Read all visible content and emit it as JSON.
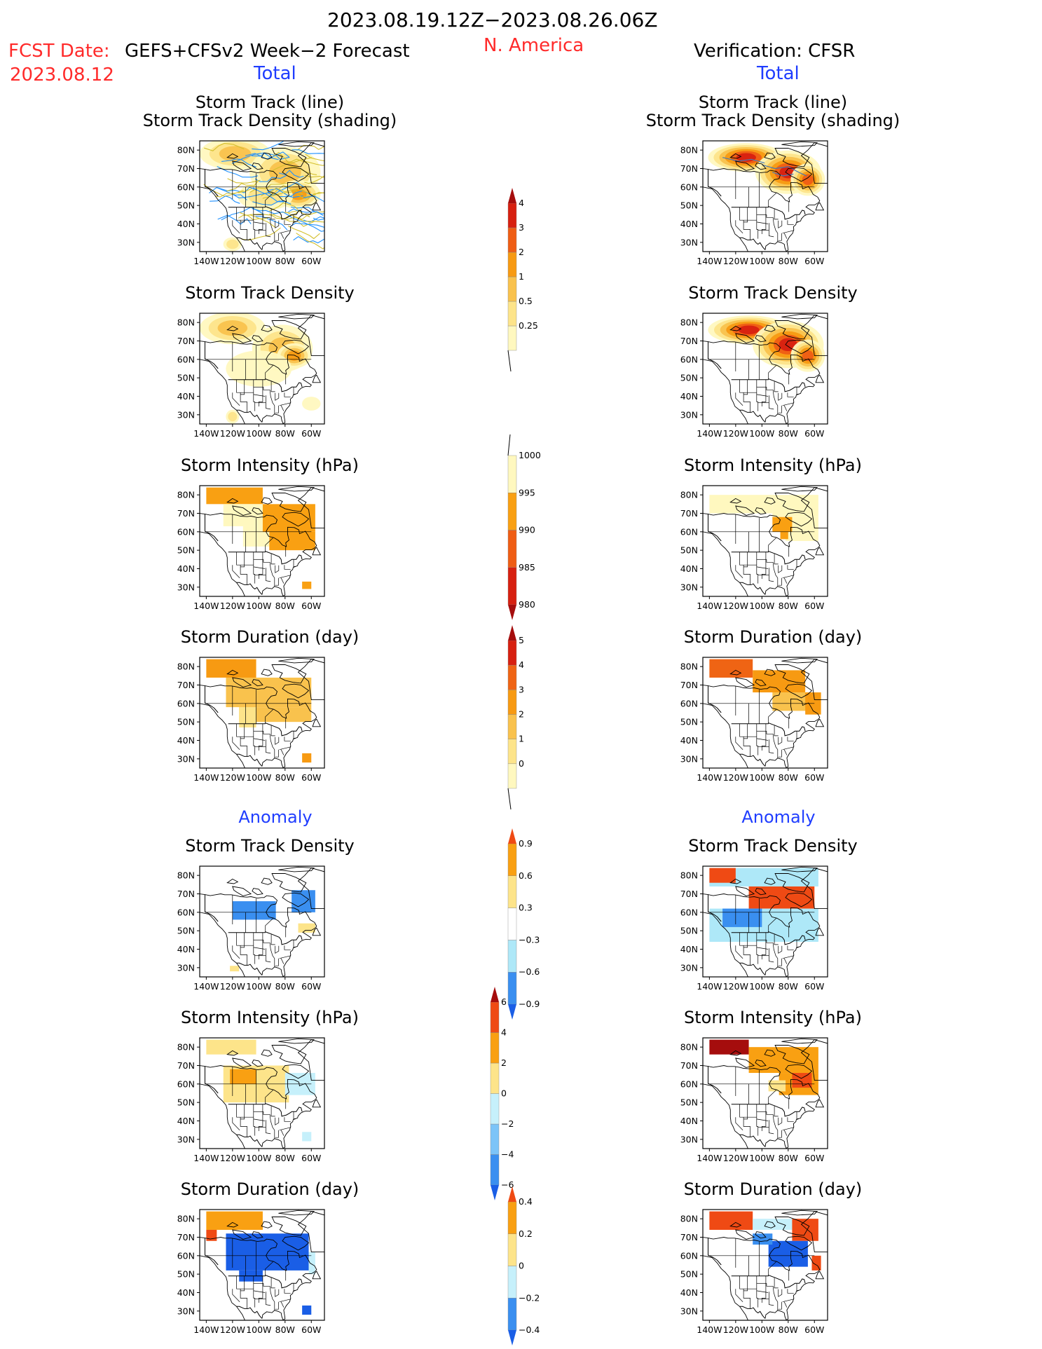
{
  "header": {
    "period": "2023.08.19.12Z−2023.08.26.06Z",
    "fcst_date_label": "FCST Date:",
    "fcst_date_value": "2023.08.12",
    "forecast_system": "GEFS+CFSv2 Week−2 Forecast",
    "region": "N. America",
    "verification": "Verification: CFSR",
    "total_left": "Total",
    "total_right": "Total",
    "anomaly_left": "Anomaly",
    "anomaly_right": "Anomaly"
  },
  "panel_titles": {
    "track_line": "Storm Track (line)",
    "track_shading": "Storm Track Density (shading)",
    "density": "Storm Track Density",
    "intensity": "Storm Intensity (hPa)",
    "duration": "Storm Duration (day)"
  },
  "axes": {
    "lat_ticks": [
      "80N",
      "70N",
      "60N",
      "50N",
      "40N",
      "30N"
    ],
    "lon_ticks": [
      "140W",
      "120W",
      "100W",
      "80W",
      "60W"
    ]
  },
  "colors": {
    "track_line_fcst": "#1e90ff",
    "track_line_fcst2": "#d4c030",
    "track_line_obs": "#4a7ab0"
  },
  "chart_data": [
    {
      "type": "heatmap",
      "id": "fcst-track-density-with-lines",
      "colorbar": "density",
      "blobs": [
        {
          "lon": -118,
          "lat": 78,
          "rx": 26,
          "ry": 8,
          "level": 2
        },
        {
          "lon": -80,
          "lat": 68,
          "rx": 26,
          "ry": 13,
          "level": 2
        },
        {
          "lon": -70,
          "lat": 56,
          "rx": 16,
          "ry": 7,
          "level": 3
        },
        {
          "lon": -95,
          "lat": 55,
          "rx": 20,
          "ry": 7,
          "level": 1
        },
        {
          "lon": -120,
          "lat": 29,
          "rx": 6,
          "ry": 3,
          "level": 1
        }
      ],
      "tracks": true
    },
    {
      "type": "heatmap",
      "id": "obs-track-density-with-lines",
      "colorbar": "density",
      "blobs": [
        {
          "lon": -112,
          "lat": 76,
          "rx": 28,
          "ry": 7,
          "level": 5
        },
        {
          "lon": -80,
          "lat": 68,
          "rx": 24,
          "ry": 11,
          "level": 5
        },
        {
          "lon": -65,
          "lat": 64,
          "rx": 12,
          "ry": 8,
          "level": 4
        }
      ],
      "obs_tracks": true
    },
    {
      "type": "heatmap",
      "id": "fcst-track-density",
      "colorbar": "density",
      "blobs": [
        {
          "lon": -120,
          "lat": 77,
          "rx": 24,
          "ry": 8,
          "level": 2
        },
        {
          "lon": -82,
          "lat": 66,
          "rx": 22,
          "ry": 12,
          "level": 2
        },
        {
          "lon": -73,
          "lat": 62,
          "rx": 12,
          "ry": 6,
          "level": 3
        },
        {
          "lon": -100,
          "lat": 55,
          "rx": 24,
          "ry": 9,
          "level": 0
        },
        {
          "lon": -60,
          "lat": 36,
          "rx": 6,
          "ry": 3,
          "level": 0
        },
        {
          "lon": -120,
          "lat": 29,
          "rx": 4,
          "ry": 3,
          "level": 1
        }
      ]
    },
    {
      "type": "heatmap",
      "id": "obs-track-density",
      "colorbar": "density",
      "blobs": [
        {
          "lon": -110,
          "lat": 76,
          "rx": 30,
          "ry": 7,
          "level": 5
        },
        {
          "lon": -80,
          "lat": 68,
          "rx": 26,
          "ry": 12,
          "level": 5
        },
        {
          "lon": -65,
          "lat": 62,
          "rx": 12,
          "ry": 8,
          "level": 4
        }
      ]
    },
    {
      "type": "heatmap",
      "id": "fcst-storm-intensity",
      "colorbar": "intensity",
      "rects": [
        {
          "lon0": -140,
          "lon1": -97,
          "lat0": 75,
          "lat1": 84,
          "level": 1
        },
        {
          "lon0": -127,
          "lon1": -97,
          "lat0": 63,
          "lat1": 75,
          "level": 0
        },
        {
          "lon0": -112,
          "lon1": -92,
          "lat0": 52,
          "lat1": 63,
          "level": 0
        },
        {
          "lon0": -97,
          "lon1": -57,
          "lat0": 60,
          "lat1": 75,
          "level": 1
        },
        {
          "lon0": -92,
          "lon1": -57,
          "lat0": 50,
          "lat1": 60,
          "level": 1
        },
        {
          "lon0": -67,
          "lon1": -60,
          "lat0": 29,
          "lat1": 33,
          "level": 1
        }
      ]
    },
    {
      "type": "heatmap",
      "id": "obs-storm-intensity",
      "colorbar": "intensity",
      "rects": [
        {
          "lon0": -140,
          "lon1": -92,
          "lat0": 70,
          "lat1": 80,
          "level": 0
        },
        {
          "lon0": -92,
          "lon1": -57,
          "lat0": 68,
          "lat1": 80,
          "level": 0
        },
        {
          "lon0": -82,
          "lon1": -57,
          "lat0": 55,
          "lat1": 68,
          "level": 0
        },
        {
          "lon0": -92,
          "lon1": -77,
          "lat0": 60,
          "lat1": 68,
          "level": 1
        },
        {
          "lon0": -86,
          "lon1": -80,
          "lat0": 56,
          "lat1": 60,
          "level": 1
        }
      ]
    },
    {
      "type": "heatmap",
      "id": "fcst-storm-duration",
      "colorbar": "duration",
      "rects": [
        {
          "lon0": -140,
          "lon1": -102,
          "lat0": 74,
          "lat1": 84,
          "level": 3
        },
        {
          "lon0": -125,
          "lon1": -60,
          "lat0": 58,
          "lat1": 74,
          "level": 2
        },
        {
          "lon0": -115,
          "lon1": -60,
          "lat0": 50,
          "lat1": 58,
          "level": 2
        },
        {
          "lon0": -115,
          "lon1": -102,
          "lat0": 47,
          "lat1": 58,
          "level": 1
        },
        {
          "lon0": -67,
          "lon1": -60,
          "lat0": 28,
          "lat1": 33,
          "level": 3
        }
      ]
    },
    {
      "type": "heatmap",
      "id": "obs-storm-duration",
      "colorbar": "duration",
      "rects": [
        {
          "lon0": -140,
          "lon1": -107,
          "lat0": 74,
          "lat1": 84,
          "level": 4
        },
        {
          "lon0": -107,
          "lon1": -67,
          "lat0": 66,
          "lat1": 78,
          "level": 3
        },
        {
          "lon0": -92,
          "lon1": -57,
          "lat0": 56,
          "lat1": 66,
          "level": 2
        },
        {
          "lon0": -67,
          "lon1": -55,
          "lat0": 54,
          "lat1": 66,
          "level": 3
        }
      ]
    },
    {
      "type": "heatmap",
      "id": "fcst-density-anomaly",
      "colorbar": "anom_density",
      "rects": [
        {
          "lon0": -130,
          "lon1": -57,
          "lat0": 64,
          "lat1": 76,
          "level": 3
        },
        {
          "lon0": -140,
          "lon1": -80,
          "lat0": 50,
          "lat1": 64,
          "level": 3
        },
        {
          "lon0": -120,
          "lon1": -87,
          "lat0": 56,
          "lat1": 66,
          "level": 1
        },
        {
          "lon0": -75,
          "lon1": -57,
          "lat0": 60,
          "lat1": 72,
          "level": 1
        },
        {
          "lon0": -70,
          "lon1": -57,
          "lat0": 49,
          "lat1": 54,
          "level": 4
        },
        {
          "lon0": -122,
          "lon1": -115,
          "lat0": 28,
          "lat1": 31,
          "level": 4
        }
      ]
    },
    {
      "type": "heatmap",
      "id": "obs-density-anomaly",
      "colorbar": "anom_density",
      "rects": [
        {
          "lon0": -140,
          "lon1": -57,
          "lat0": 74,
          "lat1": 84,
          "level": 2
        },
        {
          "lon0": -110,
          "lon1": -60,
          "lat0": 62,
          "lat1": 74,
          "level": 6
        },
        {
          "lon0": -140,
          "lon1": -57,
          "lat0": 44,
          "lat1": 62,
          "level": 2
        },
        {
          "lon0": -130,
          "lon1": -100,
          "lat0": 52,
          "lat1": 62,
          "level": 1
        },
        {
          "lon0": -140,
          "lon1": -120,
          "lat0": 76,
          "lat1": 84,
          "level": 6
        }
      ]
    },
    {
      "type": "heatmap",
      "id": "fcst-intensity-anomaly",
      "colorbar": "anom_intensity",
      "rects": [
        {
          "lon0": -140,
          "lon1": -102,
          "lat0": 76,
          "lat1": 84,
          "level": 4
        },
        {
          "lon0": -127,
          "lon1": -77,
          "lat0": 50,
          "lat1": 70,
          "level": 4
        },
        {
          "lon0": -122,
          "lon1": -102,
          "lat0": 60,
          "lat1": 68,
          "level": 5
        },
        {
          "lon0": -80,
          "lon1": -57,
          "lat0": 54,
          "lat1": 66,
          "level": 3
        },
        {
          "lon0": -67,
          "lon1": -60,
          "lat0": 29,
          "lat1": 34,
          "level": 3
        }
      ]
    },
    {
      "type": "heatmap",
      "id": "obs-intensity-anomaly",
      "colorbar": "anom_intensity",
      "rects": [
        {
          "lon0": -140,
          "lon1": -110,
          "lat0": 76,
          "lat1": 84,
          "level": 7
        },
        {
          "lon0": -110,
          "lon1": -57,
          "lat0": 66,
          "lat1": 80,
          "level": 5
        },
        {
          "lon0": -87,
          "lon1": -57,
          "lat0": 54,
          "lat1": 66,
          "level": 5
        },
        {
          "lon0": -77,
          "lon1": -62,
          "lat0": 58,
          "lat1": 66,
          "level": 6
        },
        {
          "lon0": -95,
          "lon1": -82,
          "lat0": 56,
          "lat1": 62,
          "level": 4
        }
      ]
    },
    {
      "type": "heatmap",
      "id": "fcst-duration-anomaly",
      "colorbar": "anom_duration",
      "rects": [
        {
          "lon0": -140,
          "lon1": -97,
          "lat0": 74,
          "lat1": 84,
          "level": 4
        },
        {
          "lon0": -140,
          "lon1": -132,
          "lat0": 68,
          "lat1": 74,
          "level": 5
        },
        {
          "lon0": -125,
          "lon1": -62,
          "lat0": 52,
          "lat1": 72,
          "level": 0
        },
        {
          "lon0": -115,
          "lon1": -97,
          "lat0": 46,
          "lat1": 52,
          "level": 0
        },
        {
          "lon0": -62,
          "lon1": -57,
          "lat0": 50,
          "lat1": 62,
          "level": 2
        },
        {
          "lon0": -67,
          "lon1": -60,
          "lat0": 28,
          "lat1": 33,
          "level": 0
        }
      ]
    },
    {
      "type": "heatmap",
      "id": "obs-duration-anomaly",
      "colorbar": "anom_duration",
      "rects": [
        {
          "lon0": -140,
          "lon1": -107,
          "lat0": 74,
          "lat1": 84,
          "level": 5
        },
        {
          "lon0": -107,
          "lon1": -72,
          "lat0": 74,
          "lat1": 80,
          "level": 2
        },
        {
          "lon0": -77,
          "lon1": -57,
          "lat0": 68,
          "lat1": 80,
          "level": 5
        },
        {
          "lon0": -95,
          "lon1": -65,
          "lat0": 54,
          "lat1": 68,
          "level": 0
        },
        {
          "lon0": -107,
          "lon1": -92,
          "lat0": 66,
          "lat1": 72,
          "level": 1
        },
        {
          "lon0": -62,
          "lon1": -55,
          "lat0": 52,
          "lat1": 60,
          "level": 5
        }
      ]
    }
  ],
  "colorbars": {
    "density": {
      "labels": [
        "0.25",
        "0.5",
        "1",
        "2",
        "3",
        "4"
      ],
      "colors": [
        "#fff8bf",
        "#fde48a",
        "#f9c24d",
        "#f79a12",
        "#ef5d14",
        "#d72010",
        "#a50d0d"
      ]
    },
    "intensity": {
      "labels": [
        "1000",
        "995",
        "990",
        "985",
        "980"
      ],
      "colors": [
        "#fff8bf",
        "#f9a012",
        "#ef5d14",
        "#d72010",
        "#a50d0d"
      ]
    },
    "duration": {
      "labels": [
        "0",
        "1",
        "2",
        "3",
        "4",
        "5"
      ],
      "colors": [
        "#fff8bf",
        "#fde48a",
        "#f9c24d",
        "#f79a12",
        "#ef6414",
        "#d72010",
        "#a50d0d"
      ]
    },
    "anom_density": {
      "labels": [
        "−0.9",
        "−0.6",
        "−0.3",
        "0.3",
        "0.6",
        "0.9"
      ],
      "colors": [
        "#1a5ee6",
        "#3a8ff0",
        "#aee8f8",
        "#ffffff",
        "#fde48a",
        "#f9a012",
        "#ef4a14"
      ]
    },
    "anom_intensity": {
      "labels": [
        "−6",
        "−4",
        "−2",
        "0",
        "2",
        "4",
        "6"
      ],
      "colors": [
        "#1a5ee6",
        "#3a8ff0",
        "#7cc4f8",
        "#c6f0fb",
        "#fde48a",
        "#f9a012",
        "#ef4a14",
        "#a50d0d"
      ]
    },
    "anom_duration": {
      "labels": [
        "−0.4",
        "−0.2",
        "0",
        "0.2",
        "0.4"
      ],
      "colors": [
        "#1a5ee6",
        "#3a8ff0",
        "#c6f0fb",
        "#fde48a",
        "#f9a012",
        "#ef4a14"
      ]
    }
  }
}
